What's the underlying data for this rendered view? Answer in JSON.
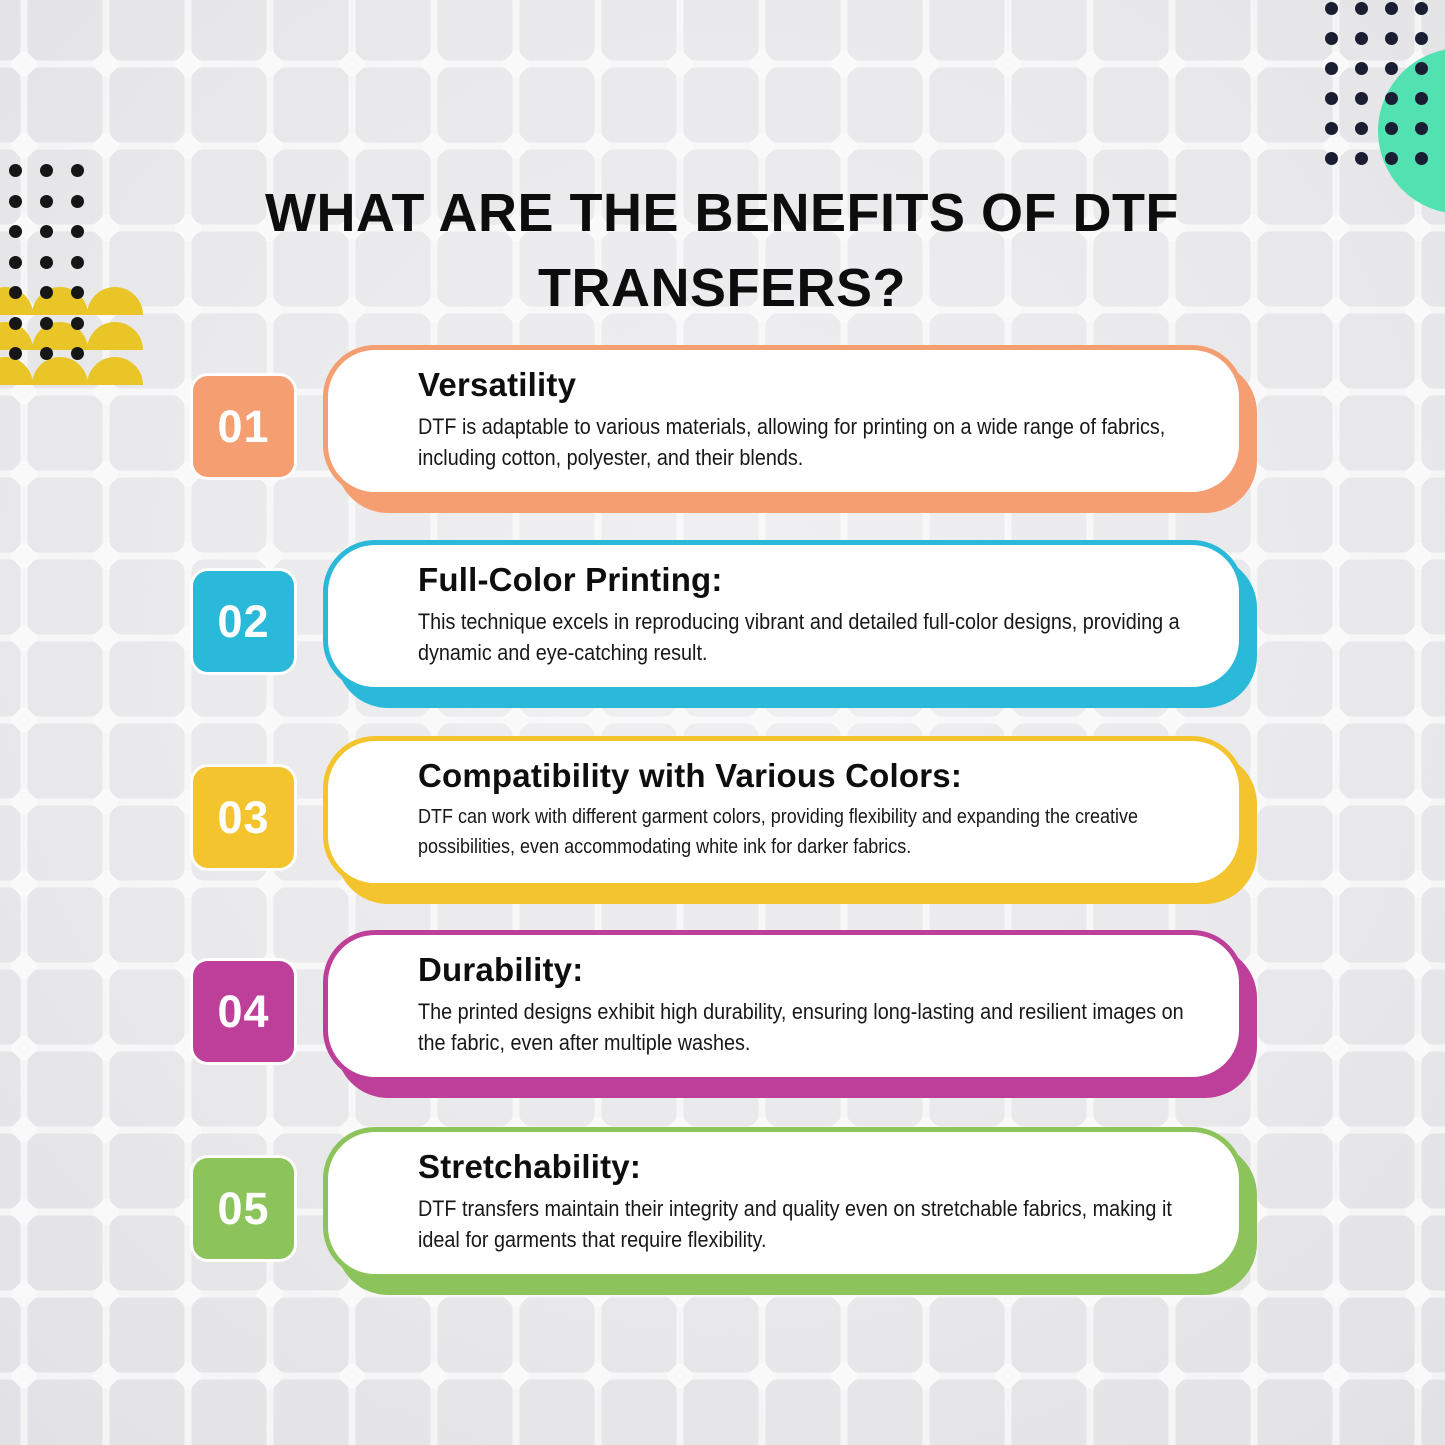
{
  "heading": "WHAT ARE THE BENEFITS OF DTF TRANSFERS?",
  "cards": [
    {
      "number": "01",
      "title": "Versatility",
      "body": "DTF is adaptable to various materials, allowing for printing on a wide range of fabrics, including cotton, polyester, and their blends.",
      "color": "#F59E71"
    },
    {
      "number": "02",
      "title": "Full-Color Printing:",
      "body": "This technique excels in reproducing vibrant and detailed full-color designs, providing a dynamic and eye-catching result.",
      "color": "#2BB9D9"
    },
    {
      "number": "03",
      "title": "Compatibility with Various Colors:",
      "body": "DTF can work with different garment colors, providing flexibility and expanding the creative possibilities, even accommodating white ink for darker fabrics.",
      "color": "#F4C42E"
    },
    {
      "number": "04",
      "title": "Durability:",
      "body": "The printed designs exhibit high durability, ensuring long-lasting and resilient images on the fabric, even after multiple washes.",
      "color": "#BE3F99"
    },
    {
      "number": "05",
      "title": "Stretchability:",
      "body": "DTF transfers maintain their integrity and quality even on stretchable fabrics, making it ideal for garments that require flexibility.",
      "color": "#8DC35B"
    }
  ],
  "decorations": {
    "teal_circle_color": "#52E1B1",
    "semicircle_color": "#E9C528",
    "dot_color_left": "#161616",
    "dot_color_right": "#1B1E33",
    "left_dots": {
      "rows": 7,
      "cols": 3
    },
    "right_dots": {
      "rows": 6,
      "cols": 4
    },
    "semicircles": {
      "rows": 3,
      "cols": 3
    }
  },
  "background": {
    "base": "#E9E9EB",
    "grid_line": "#FFFFFF"
  }
}
